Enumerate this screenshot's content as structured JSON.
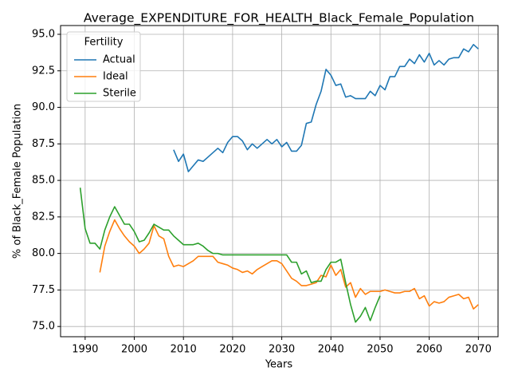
{
  "chart_data": {
    "type": "line",
    "title": "Average_EXPENDITURE_FOR_HEALTH_Black_Female_Population",
    "x_label": "Years",
    "y_label": "% of Black_Female Population",
    "legend_title": "Fertility",
    "legend_loc": "upper left",
    "grid": true,
    "x": [
      1989,
      1990,
      1991,
      1992,
      1993,
      1994,
      1995,
      1996,
      1997,
      1998,
      1999,
      2000,
      2001,
      2002,
      2003,
      2004,
      2005,
      2006,
      2007,
      2008,
      2009,
      2010,
      2011,
      2012,
      2013,
      2014,
      2015,
      2016,
      2017,
      2018,
      2019,
      2020,
      2021,
      2022,
      2023,
      2024,
      2025,
      2026,
      2027,
      2028,
      2029,
      2030,
      2031,
      2032,
      2033,
      2034,
      2035,
      2036,
      2037,
      2038,
      2039,
      2040,
      2041,
      2042,
      2043,
      2044,
      2045,
      2046,
      2047,
      2048,
      2049,
      2050,
      2051,
      2052,
      2053,
      2054,
      2055,
      2056,
      2057,
      2058,
      2059,
      2060,
      2061,
      2062,
      2063,
      2064,
      2065,
      2066,
      2067,
      2068,
      2069,
      2070
    ],
    "series": [
      {
        "name": "Actual",
        "color": "#1f77b4",
        "values": [
          null,
          null,
          null,
          null,
          null,
          null,
          null,
          null,
          null,
          null,
          null,
          null,
          null,
          null,
          null,
          null,
          null,
          null,
          null,
          87.1,
          86.3,
          86.8,
          85.6,
          86.0,
          86.4,
          86.3,
          86.6,
          86.9,
          87.2,
          86.9,
          87.6,
          88.0,
          88.0,
          87.7,
          87.1,
          87.5,
          87.2,
          87.5,
          87.8,
          87.5,
          87.8,
          87.3,
          87.6,
          87.0,
          87.0,
          87.4,
          88.9,
          89.0,
          90.2,
          91.1,
          92.6,
          92.2,
          91.5,
          91.6,
          90.7,
          90.8,
          90.6,
          90.6,
          90.6,
          91.1,
          90.8,
          91.5,
          91.2,
          92.1,
          92.1,
          92.8,
          92.8,
          93.3,
          93.0,
          93.6,
          93.1,
          93.7,
          92.9,
          93.2,
          92.9,
          93.3,
          93.4,
          93.4,
          94.0,
          93.8,
          94.3,
          94.0
        ]
      },
      {
        "name": "Ideal",
        "color": "#ff7f0e",
        "values": [
          null,
          null,
          null,
          null,
          78.7,
          80.5,
          81.5,
          82.3,
          81.7,
          81.2,
          80.8,
          80.5,
          80.0,
          80.3,
          80.7,
          81.9,
          81.2,
          81.0,
          79.8,
          79.1,
          79.2,
          79.1,
          79.3,
          79.5,
          79.8,
          79.8,
          79.8,
          79.8,
          79.4,
          79.3,
          79.2,
          79.0,
          78.9,
          78.7,
          78.8,
          78.6,
          78.9,
          79.1,
          79.3,
          79.5,
          79.5,
          79.3,
          78.8,
          78.3,
          78.1,
          77.8,
          77.8,
          77.9,
          78.0,
          78.5,
          78.4,
          79.2,
          78.5,
          78.9,
          77.7,
          78.0,
          77.0,
          77.6,
          77.2,
          77.4,
          77.4,
          77.4,
          77.5,
          77.4,
          77.3,
          77.3,
          77.4,
          77.4,
          77.6,
          76.9,
          77.1,
          76.4,
          76.7,
          76.6,
          76.7,
          77.0,
          77.1,
          77.2,
          76.9,
          77.0,
          76.2,
          76.5
        ]
      },
      {
        "name": "Sterile",
        "color": "#2ca02c",
        "values": [
          84.5,
          81.7,
          80.7,
          80.7,
          80.3,
          81.6,
          82.5,
          83.2,
          82.6,
          82.0,
          82.0,
          81.5,
          80.8,
          80.9,
          81.4,
          82.0,
          81.8,
          81.6,
          81.6,
          81.2,
          80.9,
          80.6,
          80.6,
          80.6,
          80.7,
          80.5,
          80.2,
          80.0,
          80.0,
          79.9,
          79.9,
          79.9,
          79.9,
          79.9,
          79.9,
          79.9,
          79.9,
          79.9,
          79.9,
          79.9,
          79.9,
          79.9,
          79.9,
          79.4,
          79.4,
          78.6,
          78.8,
          78.0,
          78.1,
          78.1,
          78.9,
          79.4,
          79.4,
          79.6,
          78.0,
          76.5,
          75.3,
          75.7,
          76.3,
          75.4,
          76.3,
          77.1,
          null,
          null,
          null,
          null,
          null,
          null,
          null,
          null,
          null,
          null,
          null,
          null,
          null,
          null,
          null,
          null,
          null,
          null,
          null,
          null
        ]
      }
    ],
    "xlim": [
      1985,
      2074
    ],
    "ylim": [
      74.3,
      95.6
    ],
    "xticks": [
      1990,
      2000,
      2010,
      2020,
      2030,
      2040,
      2050,
      2060,
      2070
    ],
    "yticks": [
      {
        "value": 75,
        "label": "75.0"
      },
      {
        "value": 77.5,
        "label": "77.5"
      },
      {
        "value": 80,
        "label": "80.0"
      },
      {
        "value": 82.5,
        "label": "82.5"
      },
      {
        "value": 85,
        "label": "85.0"
      },
      {
        "value": 87.5,
        "label": "87.5"
      },
      {
        "value": 90,
        "label": "90.0"
      },
      {
        "value": 92.5,
        "label": "92.5"
      },
      {
        "value": 95,
        "label": "95.0"
      }
    ]
  }
}
